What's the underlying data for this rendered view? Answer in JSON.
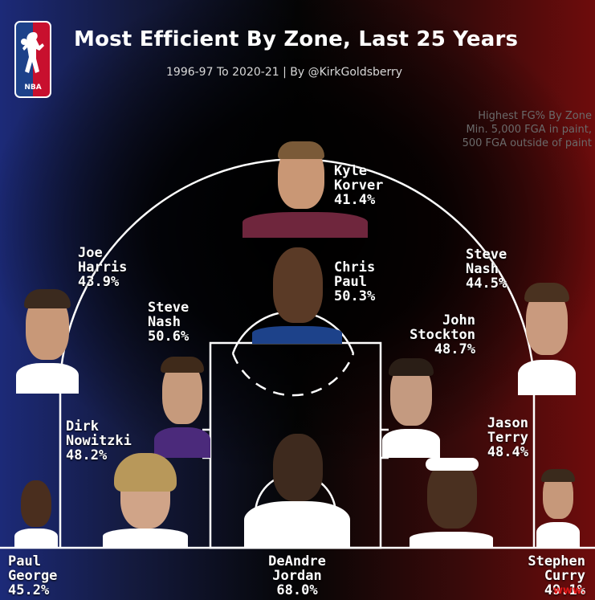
{
  "logo": {
    "text": "NBA"
  },
  "title": "Most Efficient By Zone, Last 25 Years",
  "subtitle": "1996-97 To 2020-21 | By @KirkGoldsberry",
  "criteria": [
    "Highest FG% By Zone",
    "Min. 5,000 FGA in paint,",
    "500 FGA outside of paint"
  ],
  "players": {
    "korver": {
      "first": "Kyle",
      "last": "Korver",
      "pct": "41.4%",
      "zone": "above-the-break-3-center"
    },
    "harris": {
      "first": "Joe",
      "last": "Harris",
      "pct": "43.9%",
      "zone": "above-the-break-3-left"
    },
    "nash3": {
      "first": "Steve",
      "last": "Nash",
      "pct": "44.5%",
      "zone": "above-the-break-3-right"
    },
    "paul": {
      "first": "Chris",
      "last": "Paul",
      "pct": "50.3%",
      "zone": "mid-range-top"
    },
    "nashmid": {
      "first": "Steve",
      "last": "Nash",
      "pct": "50.6%",
      "zone": "mid-range-left-wing"
    },
    "stockton": {
      "first": "John",
      "last": "Stockton",
      "pct": "48.7%",
      "zone": "mid-range-right-wing"
    },
    "nowitzki": {
      "first": "Dirk",
      "last": "Nowitzki",
      "pct": "48.2%",
      "zone": "mid-range-left-baseline"
    },
    "terry": {
      "first": "Jason",
      "last": "Terry",
      "pct": "48.4%",
      "zone": "mid-range-right-baseline"
    },
    "george": {
      "first": "Paul",
      "last": "George",
      "pct": "45.2%",
      "zone": "left-corner-3"
    },
    "jordan": {
      "first": "DeAndre",
      "last": "Jordan",
      "pct": "68.0%",
      "zone": "restricted-area"
    },
    "curry": {
      "first": "Stephen",
      "last": "Curry",
      "pct": "49.1%",
      "zone": "right-corner-3"
    }
  },
  "jersey_colors": {
    "korver": "#6f263d",
    "harris": "#ffffff",
    "nash3": "#ffffff",
    "paul": "#1d428a",
    "nashmid": "#4b2a7b",
    "stockton": "#ffffff",
    "nowitzki": "#ffffff",
    "terry": "#ffffff",
    "george": "#ffffff",
    "jordan": "#ffffff",
    "curry": "#ffffff"
  },
  "watermark": "www."
}
